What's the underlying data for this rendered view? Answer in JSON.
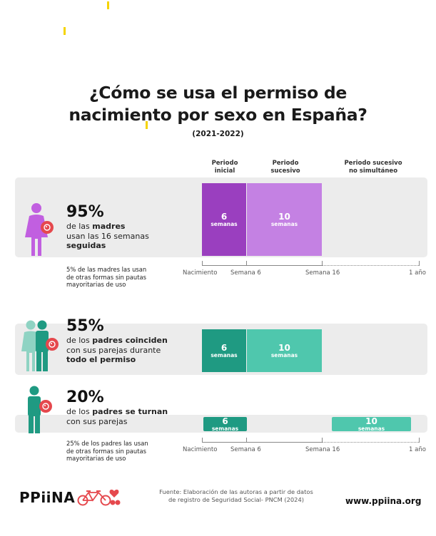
{
  "title_line1": "¿Cómo se usa el permiso de",
  "title_line2": "nacimiento por sexo en España?",
  "subtitle": "(2021-2022)",
  "column_headers": {
    "initial": [
      "Periodo",
      "inicial"
    ],
    "successive": [
      "Periodo",
      "sucesivo"
    ],
    "non_simultaneous": [
      "Periodo sucesivo",
      "no simultáneo"
    ]
  },
  "rows": [
    {
      "percent": "95%",
      "desc_parts": [
        [
          "de las ",
          "madres"
        ],
        [
          "usan las 16 semanas",
          ""
        ],
        [
          "",
          "seguidas"
        ]
      ],
      "bar1": {
        "n": "6",
        "u": "semanas",
        "color": "#9a3fbf"
      },
      "bar2": {
        "n": "10",
        "u": "semanas",
        "color": "#c481e3"
      }
    },
    {
      "percent": "55%",
      "desc_parts": [
        [
          "de los ",
          "padres coinciden"
        ],
        [
          "con sus parejas durante",
          ""
        ],
        [
          "",
          "todo el permiso"
        ]
      ],
      "bar1": {
        "n": "6",
        "u": "semanas",
        "color": "#1f9a82"
      },
      "bar2": {
        "n": "10",
        "u": "semanas",
        "color": "#4fc7ad"
      }
    },
    {
      "percent": "20%",
      "desc_parts": [
        [
          "de los ",
          "padres se turnan"
        ],
        [
          "con sus parejas",
          ""
        ]
      ],
      "bar1": {
        "n": "6",
        "u": "semanas",
        "color": "#1f9a82"
      },
      "bar2": {
        "n": "10",
        "u": "semanas",
        "color": "#4fc7ad"
      }
    }
  ],
  "notes": {
    "mothers": [
      "5% de las madres las usan",
      "de otras formas sin pautas",
      "mayoritarias de uso"
    ],
    "fathers": [
      "25% de los padres las usan",
      "de otras formas sin pautas",
      "mayoritarias de uso"
    ]
  },
  "axis_labels": {
    "birth": "Nacimiento",
    "week6": "Semana 6",
    "week16": "Semana 16",
    "year": "1 año"
  },
  "source": [
    "Fuente: Elaboración de las autoras a partir de datos",
    "de registro de Seguridad Social- PNCM (2024)"
  ],
  "logo_text": "PPiiNA",
  "website": "www.ppiina.org",
  "colors": {
    "mother_icon": "#c15fe0",
    "father_icon": "#1f9a82",
    "father_icon_light": "#8fd3c3",
    "baby_badge": "#e5484d"
  }
}
